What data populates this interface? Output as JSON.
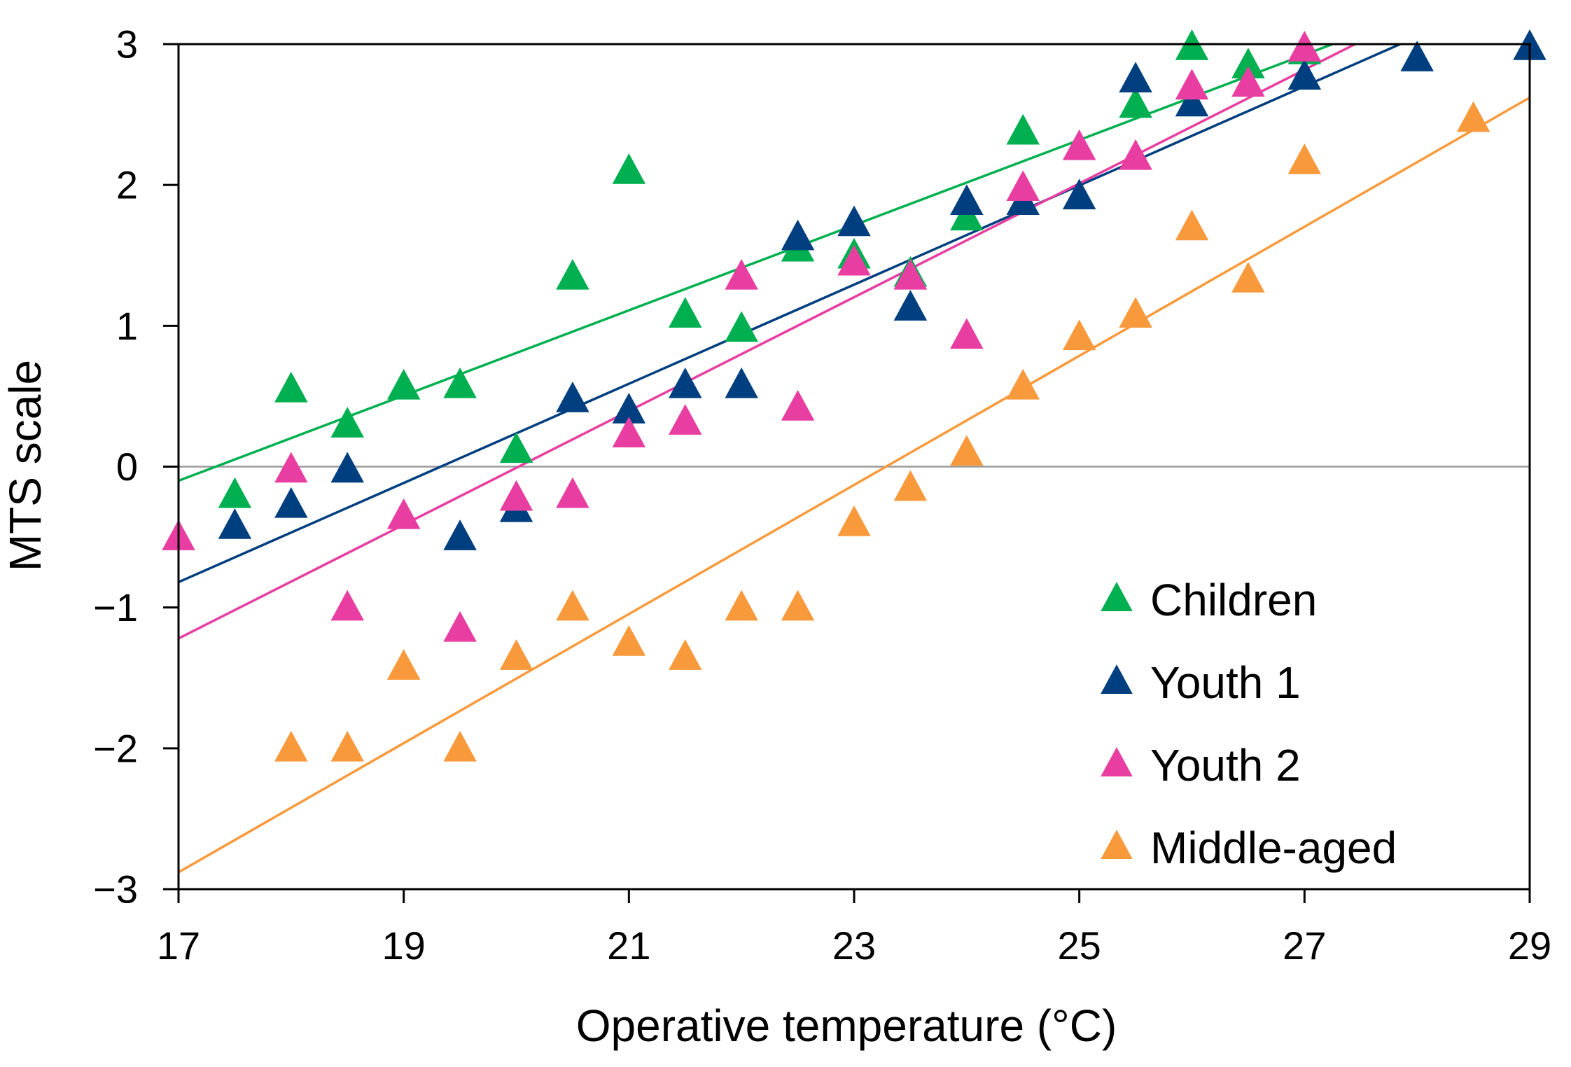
{
  "chart_data": {
    "type": "scatter",
    "xlabel": "Operative temperature (°C)",
    "ylabel": "MTS scale",
    "xlim": [
      17,
      29
    ],
    "ylim": [
      -3,
      3
    ],
    "xticks": [
      17,
      19,
      21,
      23,
      25,
      27,
      29
    ],
    "yticks": [
      3,
      2,
      1,
      0,
      -1,
      -2,
      -3
    ],
    "ytick_labels": [
      "3",
      "2",
      "1",
      "0",
      "−1",
      "−2",
      "−3"
    ],
    "legend_position": "bottom-right",
    "series": [
      {
        "name": "Children",
        "color": "#00b050",
        "marker": "triangle",
        "points": [
          [
            17.5,
            -0.2
          ],
          [
            18,
            0.55
          ],
          [
            18.5,
            0.3
          ],
          [
            19,
            0.57
          ],
          [
            19.5,
            0.58
          ],
          [
            20,
            0.12
          ],
          [
            20.5,
            1.35
          ],
          [
            21,
            2.1
          ],
          [
            21.5,
            1.08
          ],
          [
            22,
            0.98
          ],
          [
            22.5,
            1.55
          ],
          [
            23,
            1.5
          ],
          [
            23.5,
            1.37
          ],
          [
            24,
            1.77
          ],
          [
            24.5,
            2.38
          ],
          [
            25.5,
            2.57
          ],
          [
            26,
            2.98
          ],
          [
            26.5,
            2.85
          ],
          [
            27,
            2.95
          ]
        ],
        "fit": [
          [
            17,
            -0.1
          ],
          [
            27.25,
            3.0
          ]
        ]
      },
      {
        "name": "Youth 1",
        "color": "#003f7f",
        "marker": "triangle",
        "points": [
          [
            17.5,
            -0.42
          ],
          [
            18,
            -0.27
          ],
          [
            18.5,
            -0.02
          ],
          [
            19.5,
            -0.5
          ],
          [
            20,
            -0.3
          ],
          [
            20.5,
            0.48
          ],
          [
            21,
            0.4
          ],
          [
            21.5,
            0.58
          ],
          [
            22,
            0.58
          ],
          [
            22.5,
            1.63
          ],
          [
            23,
            1.73
          ],
          [
            23.5,
            1.13
          ],
          [
            24,
            1.88
          ],
          [
            24.5,
            1.88
          ],
          [
            25,
            1.92
          ],
          [
            25.5,
            2.75
          ],
          [
            26,
            2.58
          ],
          [
            27,
            2.77
          ],
          [
            28,
            2.9
          ],
          [
            29,
            2.98
          ]
        ],
        "fit": [
          [
            17,
            -0.82
          ],
          [
            27.85,
            3.0
          ]
        ]
      },
      {
        "name": "Youth 2",
        "color": "#e83ea2",
        "marker": "triangle",
        "points": [
          [
            17,
            -0.5
          ],
          [
            18,
            -0.02
          ],
          [
            18.5,
            -1.0
          ],
          [
            19,
            -0.35
          ],
          [
            19.5,
            -1.15
          ],
          [
            20,
            -0.22
          ],
          [
            20.5,
            -0.2
          ],
          [
            21,
            0.23
          ],
          [
            21.5,
            0.32
          ],
          [
            22,
            1.35
          ],
          [
            22.5,
            0.42
          ],
          [
            23,
            1.45
          ],
          [
            23.5,
            1.35
          ],
          [
            24,
            0.93
          ],
          [
            24.5,
            1.98
          ],
          [
            25,
            2.27
          ],
          [
            25.5,
            2.2
          ],
          [
            26,
            2.7
          ],
          [
            26.5,
            2.72
          ],
          [
            27,
            2.97
          ]
        ],
        "fit": [
          [
            17,
            -1.22
          ],
          [
            27.45,
            3.0
          ]
        ]
      },
      {
        "name": "Middle-aged",
        "color": "#f89a3c",
        "marker": "triangle",
        "points": [
          [
            18,
            -2.0
          ],
          [
            18.5,
            -2.0
          ],
          [
            19,
            -1.42
          ],
          [
            19.5,
            -2.0
          ],
          [
            20,
            -1.35
          ],
          [
            20.5,
            -1.0
          ],
          [
            21,
            -1.25
          ],
          [
            21.5,
            -1.35
          ],
          [
            22,
            -1.0
          ],
          [
            22.5,
            -1.0
          ],
          [
            23,
            -0.4
          ],
          [
            23.5,
            -0.15
          ],
          [
            24,
            0.1
          ],
          [
            24.5,
            0.57
          ],
          [
            25,
            0.92
          ],
          [
            25.5,
            1.08
          ],
          [
            26,
            1.7
          ],
          [
            26.5,
            1.33
          ],
          [
            27,
            2.17
          ],
          [
            28.5,
            2.47
          ]
        ],
        "fit": [
          [
            17,
            -2.88
          ],
          [
            29,
            2.62
          ]
        ]
      }
    ]
  }
}
